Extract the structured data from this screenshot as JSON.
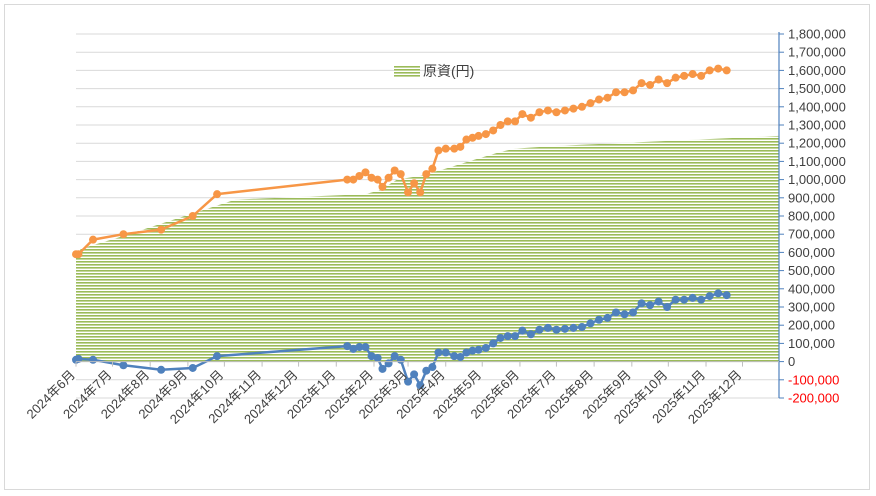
{
  "chart_data": {
    "type": "area",
    "title": "",
    "xlabel": "",
    "ylabel": "",
    "ylim": [
      -200000,
      1800000
    ],
    "y_ticks": [
      -200000,
      -100000,
      0,
      100000,
      200000,
      300000,
      400000,
      500000,
      600000,
      700000,
      800000,
      900000,
      1000000,
      1100000,
      1200000,
      1300000,
      1400000,
      1500000,
      1600000,
      1700000,
      1800000
    ],
    "y_tick_labels": [
      "-200,000",
      "-100,000",
      "0",
      "100,000",
      "200,000",
      "300,000",
      "400,000",
      "500,000",
      "600,000",
      "700,000",
      "800,000",
      "900,000",
      "1,000,000",
      "1,100,000",
      "1,200,000",
      "1,300,000",
      "1,400,000",
      "1,500,000",
      "1,600,000",
      "1,700,000",
      "1,800,000"
    ],
    "x_range": [
      "2024-06-01",
      "2025-12-31"
    ],
    "x_tick_dates": [
      "2024-06-01",
      "2024-07-01",
      "2024-08-01",
      "2024-09-01",
      "2024-10-01",
      "2024-11-01",
      "2024-12-01",
      "2025-01-01",
      "2025-02-01",
      "2025-03-01",
      "2025-04-01",
      "2025-05-01",
      "2025-06-01",
      "2025-07-01",
      "2025-08-01",
      "2025-09-01",
      "2025-10-01",
      "2025-11-01",
      "2025-12-01"
    ],
    "x_tick_labels": [
      "2024年6月",
      "2024年7月",
      "2024年8月",
      "2024年9月",
      "2024年10月",
      "2024年11月",
      "2024年12月",
      "2025年1月",
      "2025年2月",
      "2025年3月",
      "2025年4月",
      "2025年5月",
      "2025年6月",
      "2025年7月",
      "2025年8月",
      "2025年9月",
      "2025年10月",
      "2025年11月",
      "2025年12月"
    ],
    "legend": {
      "label": "原資(円)",
      "placement": "top-center"
    },
    "grid": true,
    "colors": {
      "principal": "#9bbb59",
      "total": "#f79646",
      "profit": "#4f81bd",
      "axis": "#4f81bd",
      "grid": "#d9d9d9",
      "negative_label": "#ff0000"
    },
    "principal": {
      "name": "原資(円)",
      "points": [
        [
          "2024-06-01",
          570000
        ],
        [
          "2024-06-05",
          620000
        ],
        [
          "2024-07-05",
          680000
        ],
        [
          "2024-10-10",
          890000
        ],
        [
          "2025-01-25",
          920000
        ],
        [
          "2025-02-05",
          940000
        ],
        [
          "2025-02-20",
          1000000
        ],
        [
          "2025-03-10",
          1020000
        ],
        [
          "2025-04-01",
          1060000
        ],
        [
          "2025-04-20",
          1100000
        ],
        [
          "2025-05-15",
          1150000
        ],
        [
          "2025-05-28",
          1170000
        ],
        [
          "2025-07-01",
          1185000
        ],
        [
          "2025-12-31",
          1240000
        ]
      ]
    },
    "total": {
      "points": [
        [
          "2024-06-01",
          590000
        ],
        [
          "2024-06-03",
          590000
        ],
        [
          "2024-06-15",
          670000
        ],
        [
          "2024-07-10",
          700000
        ],
        [
          "2024-08-10",
          725000
        ],
        [
          "2024-09-05",
          800000
        ],
        [
          "2024-09-25",
          920000
        ],
        [
          "2025-01-10",
          1000000
        ],
        [
          "2025-01-15",
          1000000
        ],
        [
          "2025-01-20",
          1020000
        ],
        [
          "2025-01-25",
          1040000
        ],
        [
          "2025-01-30",
          1010000
        ],
        [
          "2025-02-04",
          1000000
        ],
        [
          "2025-02-08",
          960000
        ],
        [
          "2025-02-13",
          1010000
        ],
        [
          "2025-02-18",
          1050000
        ],
        [
          "2025-02-23",
          1030000
        ],
        [
          "2025-03-01",
          930000
        ],
        [
          "2025-03-06",
          980000
        ],
        [
          "2025-03-11",
          930000
        ],
        [
          "2025-03-16",
          1030000
        ],
        [
          "2025-03-21",
          1060000
        ],
        [
          "2025-03-26",
          1160000
        ],
        [
          "2025-04-01",
          1170000
        ],
        [
          "2025-04-08",
          1170000
        ],
        [
          "2025-04-13",
          1180000
        ],
        [
          "2025-04-18",
          1220000
        ],
        [
          "2025-04-23",
          1230000
        ],
        [
          "2025-04-28",
          1240000
        ],
        [
          "2025-05-04",
          1250000
        ],
        [
          "2025-05-10",
          1270000
        ],
        [
          "2025-05-16",
          1300000
        ],
        [
          "2025-05-22",
          1320000
        ],
        [
          "2025-05-28",
          1320000
        ],
        [
          "2025-06-03",
          1360000
        ],
        [
          "2025-06-10",
          1340000
        ],
        [
          "2025-06-17",
          1370000
        ],
        [
          "2025-06-24",
          1380000
        ],
        [
          "2025-07-01",
          1370000
        ],
        [
          "2025-07-08",
          1380000
        ],
        [
          "2025-07-15",
          1390000
        ],
        [
          "2025-07-22",
          1400000
        ],
        [
          "2025-07-29",
          1420000
        ],
        [
          "2025-08-05",
          1440000
        ],
        [
          "2025-08-12",
          1450000
        ],
        [
          "2025-08-19",
          1480000
        ],
        [
          "2025-08-26",
          1480000
        ],
        [
          "2025-09-02",
          1490000
        ],
        [
          "2025-09-09",
          1530000
        ],
        [
          "2025-09-16",
          1520000
        ],
        [
          "2025-09-23",
          1550000
        ],
        [
          "2025-09-30",
          1530000
        ],
        [
          "2025-10-07",
          1560000
        ],
        [
          "2025-10-14",
          1570000
        ],
        [
          "2025-10-21",
          1580000
        ],
        [
          "2025-10-28",
          1570000
        ],
        [
          "2025-11-04",
          1600000
        ],
        [
          "2025-11-11",
          1610000
        ],
        [
          "2025-11-18",
          1600000
        ]
      ]
    },
    "profit": {
      "points": [
        [
          "2024-06-01",
          10000
        ],
        [
          "2024-06-03",
          15000
        ],
        [
          "2024-06-15",
          10000
        ],
        [
          "2024-07-10",
          -20000
        ],
        [
          "2024-08-10",
          -45000
        ],
        [
          "2024-09-05",
          -35000
        ],
        [
          "2024-09-25",
          30000
        ],
        [
          "2025-01-10",
          85000
        ],
        [
          "2025-01-15",
          70000
        ],
        [
          "2025-01-20",
          80000
        ],
        [
          "2025-01-25",
          80000
        ],
        [
          "2025-01-30",
          30000
        ],
        [
          "2025-02-04",
          20000
        ],
        [
          "2025-02-08",
          -40000
        ],
        [
          "2025-02-13",
          -10000
        ],
        [
          "2025-02-18",
          30000
        ],
        [
          "2025-02-23",
          10000
        ],
        [
          "2025-03-01",
          -110000
        ],
        [
          "2025-03-06",
          -70000
        ],
        [
          "2025-03-11",
          -130000
        ],
        [
          "2025-03-16",
          -50000
        ],
        [
          "2025-03-21",
          -30000
        ],
        [
          "2025-03-26",
          50000
        ],
        [
          "2025-04-01",
          50000
        ],
        [
          "2025-04-08",
          30000
        ],
        [
          "2025-04-13",
          25000
        ],
        [
          "2025-04-18",
          50000
        ],
        [
          "2025-04-23",
          60000
        ],
        [
          "2025-04-28",
          65000
        ],
        [
          "2025-05-04",
          75000
        ],
        [
          "2025-05-10",
          100000
        ],
        [
          "2025-05-16",
          130000
        ],
        [
          "2025-05-22",
          140000
        ],
        [
          "2025-05-28",
          140000
        ],
        [
          "2025-06-03",
          170000
        ],
        [
          "2025-06-10",
          150000
        ],
        [
          "2025-06-17",
          175000
        ],
        [
          "2025-06-24",
          185000
        ],
        [
          "2025-07-01",
          175000
        ],
        [
          "2025-07-08",
          180000
        ],
        [
          "2025-07-15",
          185000
        ],
        [
          "2025-07-22",
          190000
        ],
        [
          "2025-07-29",
          210000
        ],
        [
          "2025-08-05",
          230000
        ],
        [
          "2025-08-12",
          240000
        ],
        [
          "2025-08-19",
          270000
        ],
        [
          "2025-08-26",
          260000
        ],
        [
          "2025-09-02",
          270000
        ],
        [
          "2025-09-09",
          320000
        ],
        [
          "2025-09-16",
          310000
        ],
        [
          "2025-09-23",
          330000
        ],
        [
          "2025-09-30",
          300000
        ],
        [
          "2025-10-07",
          340000
        ],
        [
          "2025-10-14",
          340000
        ],
        [
          "2025-10-21",
          350000
        ],
        [
          "2025-10-28",
          340000
        ],
        [
          "2025-11-04",
          360000
        ],
        [
          "2025-11-11",
          375000
        ],
        [
          "2025-11-18",
          365000
        ]
      ]
    }
  }
}
